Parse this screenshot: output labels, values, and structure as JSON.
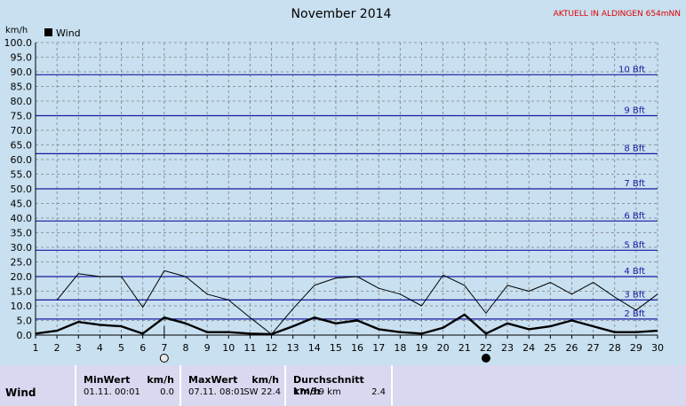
{
  "chart_data": {
    "type": "line",
    "title": "November 2014",
    "station_label": "AKTUELL IN ALDINGEN 654mNN",
    "ylabel": "km/h",
    "legend": "Wind",
    "legend_position": "top-left",
    "ylim": [
      0,
      100
    ],
    "y_ticks": [
      "0.0",
      "5.0",
      "10.0",
      "15.0",
      "20.0",
      "25.0",
      "30.0",
      "35.0",
      "40.0",
      "45.0",
      "50.0",
      "55.0",
      "60.0",
      "65.0",
      "70.0",
      "75.0",
      "80.0",
      "85.0",
      "90.0",
      "95.0",
      "100.0"
    ],
    "x": [
      1,
      2,
      3,
      4,
      5,
      6,
      7,
      8,
      9,
      10,
      11,
      12,
      13,
      14,
      15,
      16,
      17,
      18,
      19,
      20,
      21,
      22,
      23,
      24,
      25,
      26,
      27,
      28,
      29,
      30
    ],
    "grid": true,
    "beaufort_lines": [
      {
        "label": "2 Bft",
        "value": 5.5
      },
      {
        "label": "3 Bft",
        "value": 12
      },
      {
        "label": "4 Bft",
        "value": 20
      },
      {
        "label": "5 Bft",
        "value": 29
      },
      {
        "label": "6 Bft",
        "value": 39
      },
      {
        "label": "7 Bft",
        "value": 50
      },
      {
        "label": "8 Bft",
        "value": 62
      },
      {
        "label": "9 Bft",
        "value": 75
      },
      {
        "label": "10 Bft",
        "value": 89
      }
    ],
    "series": [
      {
        "name": "Wind",
        "values": [
          0.5,
          1.5,
          4.5,
          3.5,
          3,
          0.5,
          6,
          4,
          1,
          1,
          0.5,
          0.3,
          3,
          6,
          4,
          5,
          2,
          1,
          0.5,
          2.5,
          7,
          0.5,
          4,
          2,
          3,
          5,
          3,
          1,
          1,
          1.5
        ]
      },
      {
        "values": [
          null,
          12,
          21,
          20,
          20,
          9.5,
          22,
          20,
          14,
          12,
          6,
          0.3,
          9,
          17,
          19.5,
          20,
          16,
          14,
          10,
          20.5,
          17,
          7.5,
          17,
          15,
          18,
          14,
          18,
          13,
          8.5,
          14
        ]
      }
    ],
    "moon_markers": [
      {
        "day": 7,
        "phase": "full moon"
      },
      {
        "day": 22,
        "phase": "new moon"
      }
    ],
    "current_day_marker": 7
  },
  "footer": {
    "row_label": "Wind",
    "min_label": "MinWert",
    "min_unit": "km/h",
    "min_time": "01.11.  00:01",
    "min_value": "0.0",
    "max_label": "MaxWert",
    "max_unit": "km/h",
    "max_time": "07.11.  08:01",
    "max_value": "SW 22.4",
    "avg_label": "Durchschnitt km/h",
    "avg_km": "1746.9 km",
    "avg_value": "2.4"
  }
}
